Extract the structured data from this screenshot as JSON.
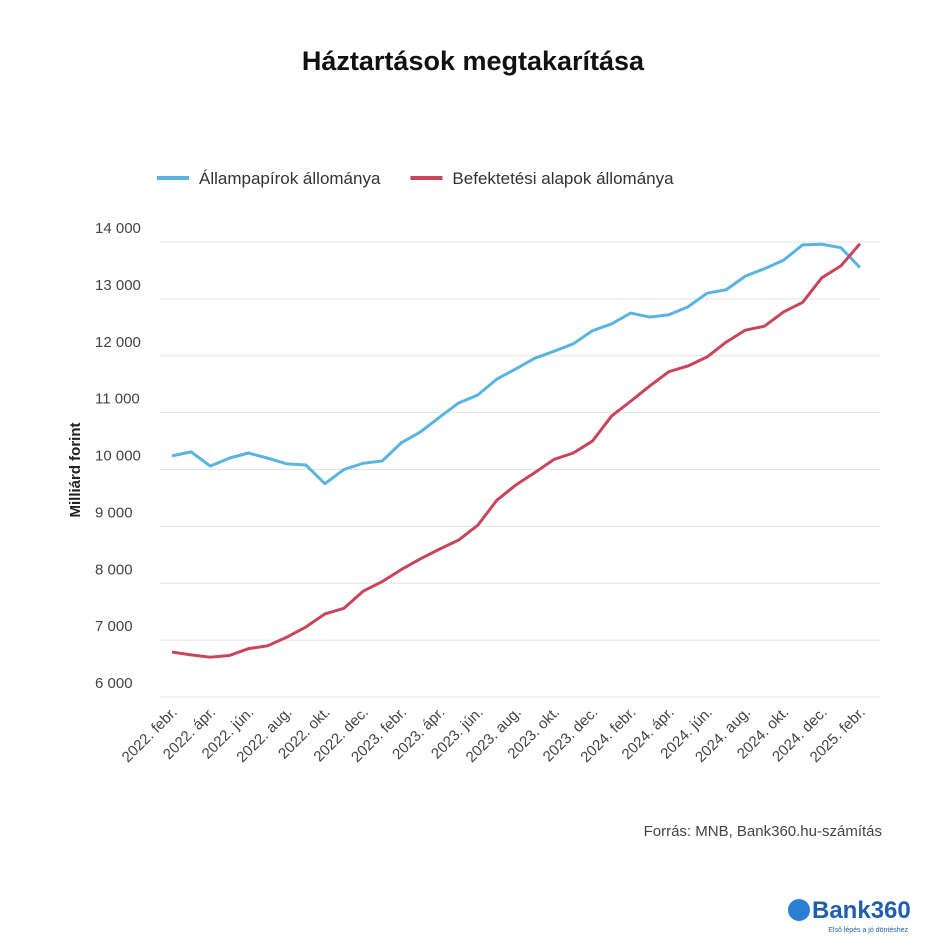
{
  "chart_data": {
    "type": "line",
    "title": "Háztartások megtakarítása",
    "y_label": "Milliárd forint",
    "source": "Forrás: MNB, Bank360.hu-számítás",
    "logo": "Bank360",
    "logo_tagline": "Első lépés a jó döntéshez",
    "categories": [
      "2022. febr.",
      null,
      "2022. ápr.",
      null,
      "2022. jún.",
      null,
      "2022. aug.",
      null,
      "2022. okt.",
      null,
      "2022. dec.",
      null,
      "2023. febr.",
      null,
      "2023. ápr.",
      null,
      "2023. jún.",
      null,
      "2023. aug.",
      null,
      "2023. okt.",
      null,
      "2023. dec.",
      null,
      "2024. febr.",
      null,
      "2024. ápr.",
      null,
      "2024. jún.",
      null,
      "2024. aug.",
      null,
      "2024. okt.",
      null,
      "2024. dec.",
      null,
      "2025. febr."
    ],
    "series": [
      {
        "name": "Állampapírok állománya",
        "color": "#5ab4e0",
        "values": [
          10240,
          10310,
          10060,
          10200,
          10290,
          10200,
          10100,
          10080,
          9750,
          10000,
          10110,
          10150,
          10470,
          10660,
          10920,
          11170,
          11310,
          11590,
          11770,
          11960,
          12080,
          12210,
          12440,
          12560,
          12750,
          12680,
          12720,
          12860,
          13100,
          13160,
          13400,
          13530,
          13680,
          13950,
          13960,
          13900,
          13550
        ]
      },
      {
        "name": "Befektetési alapok állománya",
        "color": "#c8455a",
        "values": [
          6790,
          6740,
          6700,
          6730,
          6850,
          6900,
          7050,
          7230,
          7460,
          7560,
          7860,
          8030,
          8240,
          8430,
          8600,
          8760,
          9020,
          9460,
          9730,
          9950,
          10180,
          10290,
          10500,
          10940,
          11200,
          11470,
          11720,
          11820,
          11980,
          12240,
          12450,
          12520,
          12770,
          12940,
          13370,
          13580,
          13970
        ]
      }
    ],
    "ylim": [
      6000,
      14000
    ],
    "yticks": [
      {
        "value": 6000,
        "label": "6 000"
      },
      {
        "value": 7000,
        "label": "7 000"
      },
      {
        "value": 8000,
        "label": "8 000"
      },
      {
        "value": 9000,
        "label": "9 000"
      },
      {
        "value": 10000,
        "label": "10 000"
      },
      {
        "value": 11000,
        "label": "11 000"
      },
      {
        "value": 12000,
        "label": "12 000"
      },
      {
        "value": 13000,
        "label": "13 000"
      },
      {
        "value": 14000,
        "label": "14 000"
      }
    ],
    "grid": true,
    "legend": "top-left"
  }
}
